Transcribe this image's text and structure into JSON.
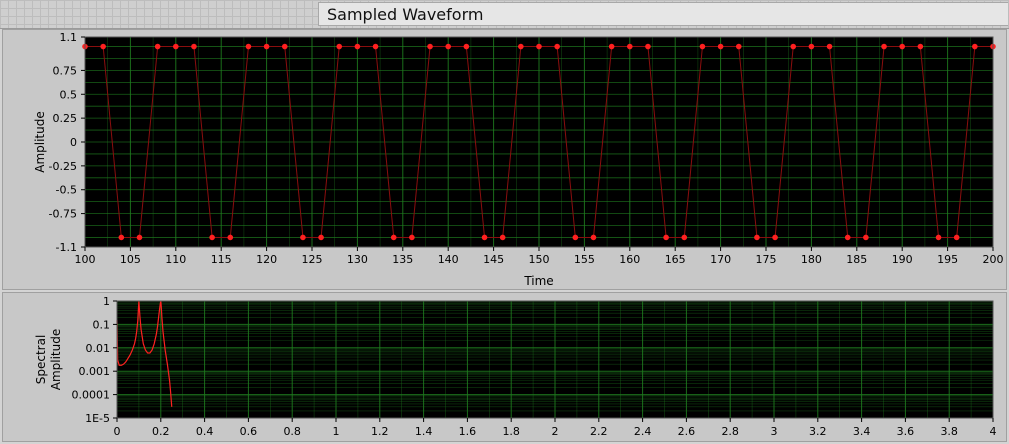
{
  "window": {
    "title": "Sampled Waveform"
  },
  "colors": {
    "plot_bg": "#000000",
    "grid": "#1f7a1f",
    "trace": "#ff2020"
  },
  "chart_data": [
    {
      "type": "scatter",
      "xlabel": "Time",
      "ylabel": "Amplitude",
      "xlim": [
        100,
        200
      ],
      "ylim": [
        -1.1,
        1.1
      ],
      "xticks": [
        "100",
        "105",
        "110",
        "115",
        "120",
        "125",
        "130",
        "135",
        "140",
        "145",
        "150",
        "155",
        "160",
        "165",
        "170",
        "175",
        "180",
        "185",
        "190",
        "195",
        "200"
      ],
      "yticks": [
        "1.1",
        "0.75",
        "0.5",
        "0.25",
        "0",
        "-0.25",
        "-0.5",
        "-0.75",
        "-1.1"
      ],
      "grid": true,
      "series": [
        {
          "x": [
            100,
            102,
            104,
            106,
            108,
            110,
            112,
            114,
            116,
            118,
            120,
            122,
            124,
            126,
            128,
            130,
            132,
            134,
            136,
            138,
            140,
            142,
            144,
            146,
            148,
            150,
            152,
            154,
            156,
            158,
            160,
            162,
            164,
            166,
            168,
            170,
            172,
            174,
            176,
            178,
            180,
            182,
            184,
            186,
            188,
            190,
            192,
            194,
            196,
            198,
            200
          ],
          "y": [
            1,
            1,
            -1,
            -1,
            1,
            1,
            1,
            -1,
            -1,
            1,
            1,
            1,
            -1,
            -1,
            1,
            1,
            1,
            -1,
            -1,
            1,
            1,
            1,
            -1,
            -1,
            1,
            1,
            1,
            -1,
            -1,
            1,
            1,
            1,
            -1,
            -1,
            1,
            1,
            1,
            -1,
            -1,
            1,
            1,
            1,
            -1,
            -1,
            1,
            1,
            1,
            -1,
            -1,
            1,
            1
          ]
        }
      ]
    },
    {
      "type": "line",
      "xlabel": "",
      "ylabel": "Spectral Amplitude",
      "yscale": "log",
      "xlim": [
        0,
        4
      ],
      "ylim": [
        1e-05,
        1
      ],
      "xticks": [
        "0",
        "0.2",
        "0.4",
        "0.6",
        "0.8",
        "1",
        "1.2",
        "1.4",
        "1.6",
        "1.8",
        "2",
        "2.2",
        "2.4",
        "2.6",
        "2.8",
        "3",
        "3.2",
        "3.4",
        "3.6",
        "3.8",
        "4"
      ],
      "yticks": [
        "1",
        "0.1",
        "0.01",
        "0.001",
        "0.0001",
        "1E-5"
      ],
      "grid": true,
      "series": [
        {
          "x": [
            0,
            0.003,
            0.01,
            0.02,
            0.03,
            0.04,
            0.05,
            0.06,
            0.07,
            0.08,
            0.085,
            0.09,
            0.095,
            0.098,
            0.1,
            0.102,
            0.105,
            0.11,
            0.115,
            0.12,
            0.13,
            0.14,
            0.15,
            0.16,
            0.17,
            0.18,
            0.185,
            0.19,
            0.195,
            0.198,
            0.2,
            0.202,
            0.205,
            0.21,
            0.215,
            0.22,
            0.225,
            0.23,
            0.235,
            0.24,
            0.245,
            0.25
          ],
          "y": [
            0.15,
            0.003,
            0.0018,
            0.0018,
            0.002,
            0.0025,
            0.0035,
            0.005,
            0.008,
            0.015,
            0.025,
            0.05,
            0.15,
            0.5,
            1,
            0.5,
            0.2,
            0.06,
            0.03,
            0.015,
            0.008,
            0.006,
            0.006,
            0.008,
            0.015,
            0.04,
            0.08,
            0.2,
            0.5,
            0.8,
            1,
            0.6,
            0.2,
            0.05,
            0.02,
            0.008,
            0.004,
            0.002,
            0.0009,
            0.0004,
            0.00012,
            3e-05
          ]
        }
      ]
    }
  ]
}
